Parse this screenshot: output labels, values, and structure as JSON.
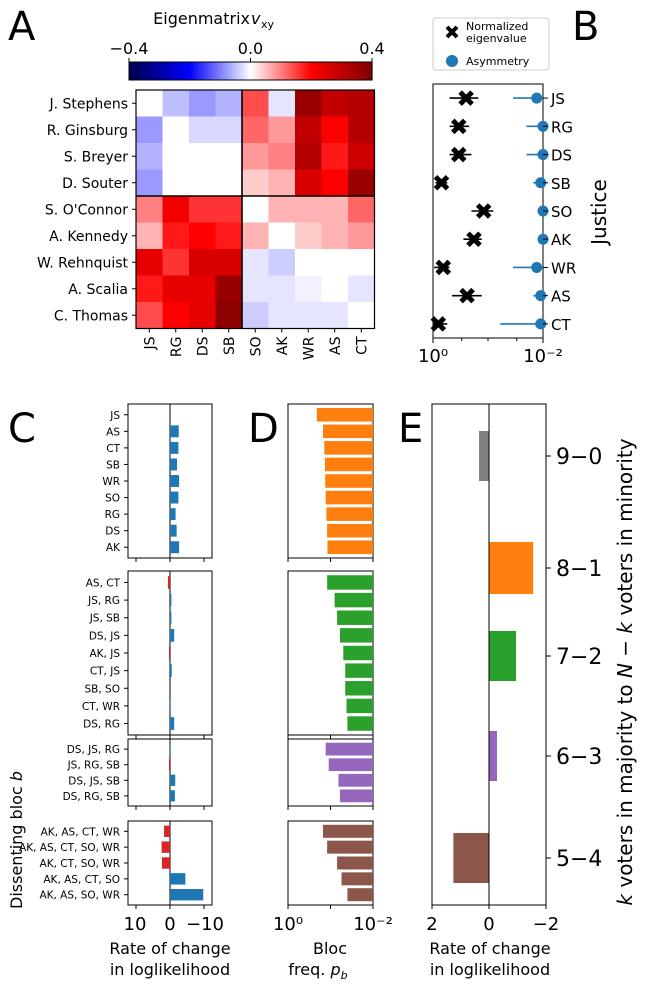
{
  "colors": {
    "axis": "#000000",
    "blue": "#1f77b4",
    "red": "#d62728",
    "orange": "#ff7f0e",
    "green": "#2ca02c",
    "purple": "#9467bd",
    "brown": "#8c564b",
    "gray": "#7f7f7f"
  },
  "panels": {
    "A": "A",
    "B": "B",
    "C": "C",
    "D": "D",
    "E": "E"
  },
  "chart_data": [
    {
      "id": "A",
      "type": "heatmap",
      "title": "Eigenmatrix v_xy",
      "colorbar": {
        "min": -0.4,
        "max": 0.4,
        "ticks": [
          "−0.4",
          "0.0",
          "0.4"
        ]
      },
      "rows": [
        "J. Stephens",
        "R. Ginsburg",
        "S. Breyer",
        "D. Souter",
        "S. O'Connor",
        "A. Kennedy",
        "W. Rehnquist",
        "A. Scalia",
        "C. Thomas"
      ],
      "cols": [
        "JS",
        "RG",
        "DS",
        "SB",
        "SO",
        "AK",
        "WR",
        "AS",
        "CT"
      ],
      "values": [
        [
          0.0,
          -0.05,
          -0.08,
          -0.06,
          0.14,
          -0.02,
          0.36,
          0.3,
          0.32
        ],
        [
          -0.08,
          0.0,
          -0.03,
          -0.03,
          0.12,
          0.08,
          0.3,
          0.2,
          0.32
        ],
        [
          -0.06,
          0.0,
          0.0,
          0.0,
          0.08,
          0.1,
          0.32,
          0.18,
          0.28
        ],
        [
          -0.08,
          0.0,
          0.0,
          0.0,
          0.04,
          0.06,
          0.26,
          0.2,
          0.36
        ],
        [
          0.1,
          0.22,
          0.16,
          0.16,
          0.0,
          0.06,
          0.06,
          0.06,
          0.12
        ],
        [
          0.06,
          0.18,
          0.2,
          0.18,
          0.06,
          0.0,
          0.04,
          0.06,
          0.08
        ],
        [
          0.24,
          0.16,
          0.26,
          0.26,
          -0.02,
          -0.04,
          0.0,
          0.0,
          0.0
        ],
        [
          0.18,
          0.24,
          0.24,
          0.36,
          -0.02,
          -0.02,
          -0.01,
          0.0,
          -0.02
        ],
        [
          0.14,
          0.2,
          0.24,
          0.38,
          -0.04,
          -0.02,
          -0.02,
          -0.02,
          0.0
        ]
      ]
    },
    {
      "id": "B",
      "type": "scatter",
      "xscale": "log",
      "xlim": [
        1,
        0.01
      ],
      "xticks": [
        "10⁰",
        "10⁻²"
      ],
      "ylabel": "Justice",
      "categories": [
        "JS",
        "RG",
        "DS",
        "SB",
        "SO",
        "AK",
        "WR",
        "AS",
        "CT"
      ],
      "legend": {
        "position": "top",
        "entries": [
          "Normalized eigenvalue",
          "Asymmetry"
        ]
      },
      "series": [
        {
          "name": "Normalized eigenvalue",
          "marker": "X",
          "values": [
            0.25,
            0.34,
            0.34,
            0.7,
            0.12,
            0.18,
            0.65,
            0.24,
            0.8
          ],
          "err_low": [
            0.5,
            0.5,
            0.5,
            0.9,
            0.2,
            0.28,
            0.95,
            0.45,
            1.0
          ],
          "err_high": [
            0.15,
            0.22,
            0.2,
            0.55,
            0.08,
            0.13,
            0.5,
            0.13,
            0.55
          ]
        },
        {
          "name": "Asymmetry",
          "marker": "o",
          "values": [
            0.013,
            0.01,
            0.01,
            0.011,
            0.01,
            0.01,
            0.013,
            0.011,
            0.011
          ],
          "err_low": [
            0.035,
            0.02,
            0.02,
            0.015,
            0.01,
            0.01,
            0.035,
            0.015,
            0.06
          ],
          "err_high": [
            0.01,
            0.01,
            0.01,
            0.01,
            0.01,
            0.01,
            0.01,
            0.01,
            0.01
          ]
        }
      ]
    },
    {
      "id": "C",
      "type": "bar",
      "orientation": "horizontal",
      "xlabel": "Rate of change\nin loglikelihood",
      "ylabel": "Dissenting bloc b",
      "xlim": [
        12,
        -12
      ],
      "xticks": [
        "10",
        "0",
        "−10"
      ],
      "groups": [
        {
          "categories": [
            "JS",
            "AS",
            "CT",
            "SB",
            "WR",
            "SO",
            "RG",
            "DS",
            "AK"
          ],
          "values": [
            0,
            -2.5,
            -2.4,
            -2.0,
            -2.6,
            -2.4,
            -1.6,
            -1.9,
            -2.6
          ]
        },
        {
          "categories": [
            "AS, CT",
            "JS, RG",
            "JS, SB",
            "DS, JS",
            "AK, JS",
            "CT, JS",
            "SB, SO",
            "CT, WR",
            "DS, RG"
          ],
          "values": [
            0.6,
            -0.4,
            -0.4,
            -1.2,
            0.3,
            -0.5,
            0,
            -0.2,
            -1.2
          ]
        },
        {
          "categories": [
            "DS, JS, RG",
            "JS, RG, SB",
            "DS, JS, SB",
            "DS, RG, SB"
          ],
          "values": [
            -0.2,
            0.3,
            -1.5,
            -1.4
          ]
        },
        {
          "categories": [
            "AK, AS, CT, WR",
            "AK, AS, CT, SO, WR",
            "AK, CT, SO, WR",
            "AK, AS, CT, SO",
            "AK, AS, SO, WR"
          ],
          "values": [
            1.7,
            2.4,
            2.3,
            -4.4,
            -9.5
          ]
        }
      ]
    },
    {
      "id": "D",
      "type": "bar",
      "orientation": "horizontal",
      "xscale": "log",
      "xlabel": "Bloc\nfreq. p_b",
      "xlim": [
        1,
        0.01
      ],
      "xticks": [
        "10⁰",
        "10⁻²"
      ],
      "groups": [
        {
          "categories": [
            "JS",
            "AS",
            "CT",
            "SB",
            "WR",
            "SO",
            "RG",
            "DS",
            "AK"
          ],
          "values": [
            0.21,
            0.15,
            0.14,
            0.135,
            0.133,
            0.13,
            0.125,
            0.12,
            0.118
          ]
        },
        {
          "categories": [
            "AS, CT",
            "JS, RG",
            "JS, SB",
            "DS, JS",
            "AK, JS",
            "CT, JS",
            "SB, SO",
            "CT, WR",
            "DS, RG"
          ],
          "values": [
            0.12,
            0.08,
            0.07,
            0.06,
            0.05,
            0.045,
            0.045,
            0.042,
            0.04
          ]
        },
        {
          "categories": [
            "DS, JS, RG",
            "JS, RG, SB",
            "DS, JS, SB",
            "DS, RG, SB"
          ],
          "values": [
            0.13,
            0.11,
            0.065,
            0.06
          ]
        },
        {
          "categories": [
            "AK, AS, CT, WR",
            "AK, AS, CT, SO, WR",
            "AK, CT, SO, WR",
            "AK, AS, CT, SO",
            "AK, AS, SO, WR"
          ],
          "values": [
            0.15,
            0.12,
            0.07,
            0.055,
            0.04
          ]
        }
      ]
    },
    {
      "id": "E",
      "type": "bar",
      "orientation": "horizontal",
      "xlabel": "Rate of change\nin loglikelihood",
      "ylabel": "k voters in majority to N − k voters in minority",
      "xlim": [
        2,
        -2
      ],
      "xticks": [
        "2",
        "0",
        "−2"
      ],
      "categories": [
        "9−0",
        "8−1",
        "7−2",
        "6−3",
        "5−4"
      ],
      "values": [
        0.35,
        -1.55,
        -0.95,
        -0.28,
        1.25
      ]
    }
  ]
}
